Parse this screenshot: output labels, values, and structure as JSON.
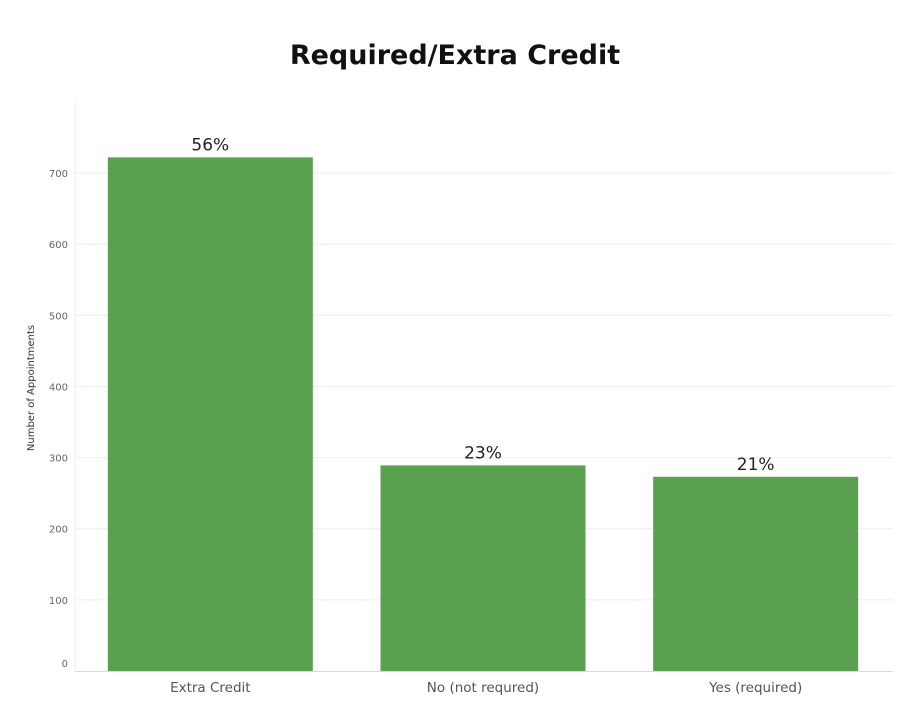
{
  "chart_data": {
    "type": "bar",
    "title": "Required/Extra Credit",
    "xlabel": "",
    "ylabel": "Number of Appointments",
    "categories": [
      "Extra Credit",
      "No (not requred)",
      "Yes (required)"
    ],
    "values": [
      722,
      289,
      273
    ],
    "data_labels": [
      "56%",
      "23%",
      "21%"
    ],
    "ylim": [
      0,
      780
    ],
    "yticks": [
      0,
      100,
      200,
      300,
      400,
      500,
      600,
      700
    ],
    "grid": true,
    "legend": "none",
    "colors": {
      "bar": "#5aa14f",
      "grid": "#eeeeee",
      "axis": "#d9d9d9",
      "tick_text": "#666666",
      "title_text": "#111111",
      "label_text": "#222222"
    }
  }
}
